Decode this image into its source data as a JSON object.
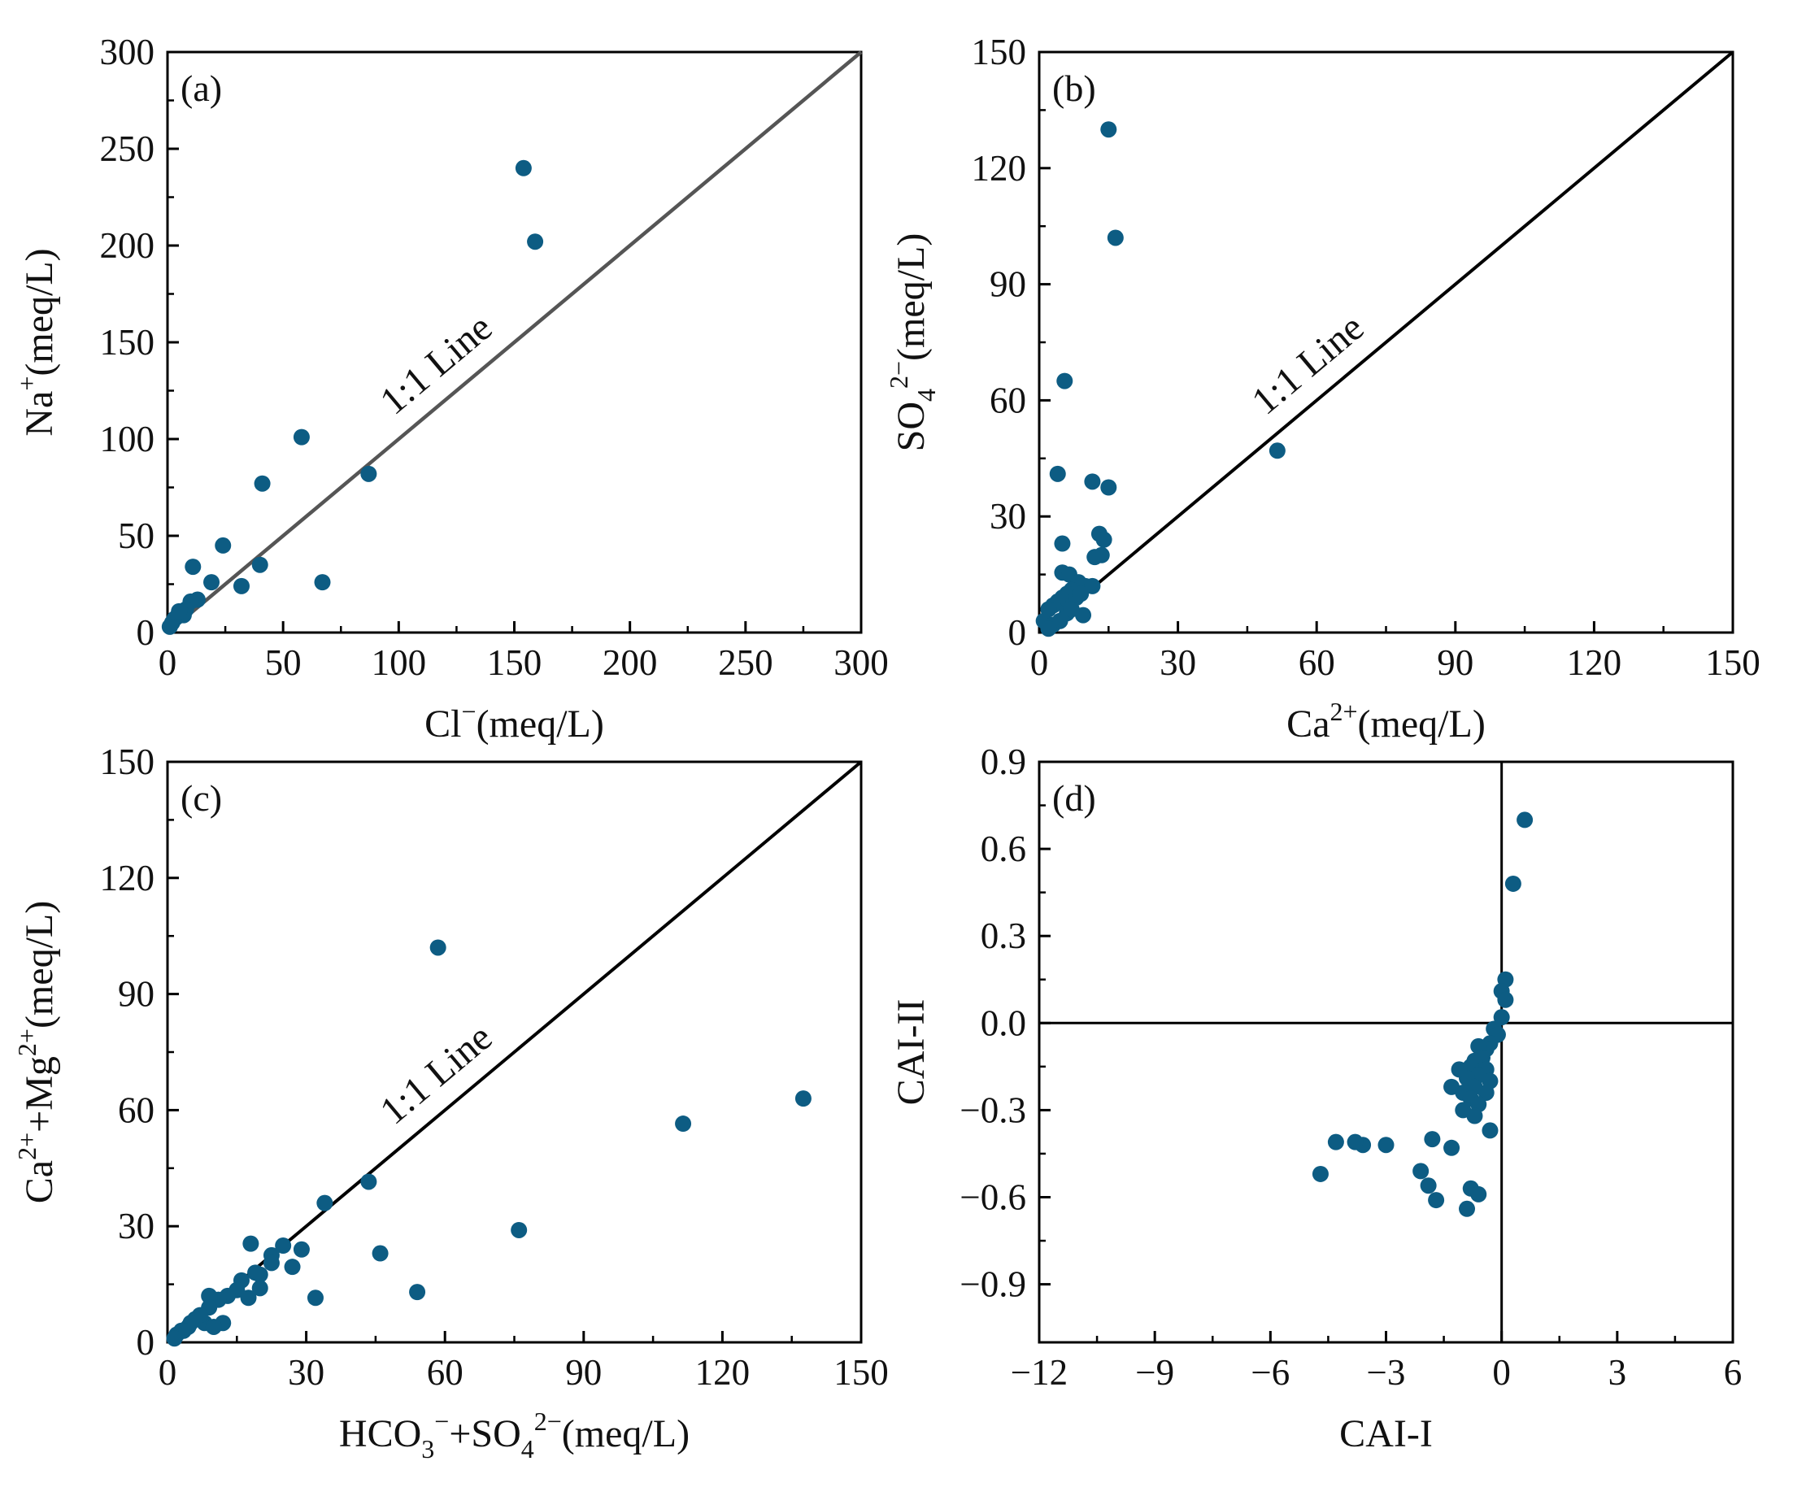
{
  "colors": {
    "point": "#0d5c83",
    "axis": "#000000",
    "ref_line_a": "#555555",
    "ref_line": "#000000"
  },
  "chart_data": [
    {
      "type": "scatter",
      "panel": "(a)",
      "xlabel": {
        "base": "Cl",
        "sup": "−",
        "unit": "(meq/L)"
      },
      "ylabel": {
        "base": "Na",
        "sup": "+",
        "unit": "(meq/L)"
      },
      "xlim": [
        0,
        300
      ],
      "ylim": [
        0,
        300
      ],
      "xticks": [
        "0",
        "50",
        "100",
        "150",
        "200",
        "250",
        "300"
      ],
      "yticks": [
        "0",
        "50",
        "100",
        "150",
        "200",
        "250",
        "300"
      ],
      "ref_line": {
        "label": "1:1 Line",
        "from": [
          0,
          0
        ],
        "to": [
          300,
          300
        ]
      },
      "points": [
        [
          154,
          240
        ],
        [
          159,
          202
        ],
        [
          58,
          101
        ],
        [
          87,
          82
        ],
        [
          41,
          77
        ],
        [
          40,
          35
        ],
        [
          67,
          26
        ],
        [
          32,
          24
        ],
        [
          24,
          45
        ],
        [
          19,
          26
        ],
        [
          11,
          34
        ],
        [
          13,
          17
        ],
        [
          10,
          16
        ],
        [
          8,
          12
        ],
        [
          6,
          10
        ],
        [
          5,
          9
        ],
        [
          4,
          8
        ],
        [
          3,
          7
        ],
        [
          2,
          5
        ],
        [
          1,
          3
        ],
        [
          7,
          9
        ],
        [
          5,
          11
        ]
      ]
    },
    {
      "type": "scatter",
      "panel": "(b)",
      "xlabel": {
        "base": "Ca",
        "sup": "2+",
        "unit": "(meq/L)"
      },
      "ylabel": {
        "base": "SO",
        "sub": "4",
        "sup": "2−",
        "unit": "(meq/L)"
      },
      "xlim": [
        0,
        150
      ],
      "ylim": [
        0,
        150
      ],
      "xticks": [
        "0",
        "30",
        "60",
        "90",
        "120",
        "150"
      ],
      "yticks": [
        "0",
        "30",
        "60",
        "90",
        "120",
        "150"
      ],
      "ref_line": {
        "label": "1:1 Line",
        "from": [
          0,
          0
        ],
        "to": [
          150,
          150
        ]
      },
      "points": [
        [
          15,
          130
        ],
        [
          16.5,
          102
        ],
        [
          5.5,
          65
        ],
        [
          4,
          41
        ],
        [
          11.5,
          39
        ],
        [
          15,
          37.5
        ],
        [
          51.5,
          47
        ],
        [
          5,
          23
        ],
        [
          13,
          25.5
        ],
        [
          14,
          24
        ],
        [
          13.5,
          20
        ],
        [
          12,
          19.5
        ],
        [
          5,
          15.5
        ],
        [
          6.5,
          15
        ],
        [
          8.5,
          13
        ],
        [
          10,
          12
        ],
        [
          11.5,
          12
        ],
        [
          7,
          11
        ],
        [
          6,
          10
        ],
        [
          5,
          9
        ],
        [
          4,
          8
        ],
        [
          3,
          7
        ],
        [
          2,
          6
        ],
        [
          1,
          3
        ],
        [
          8,
          9
        ],
        [
          9,
          10
        ],
        [
          9.5,
          4.5
        ],
        [
          4.5,
          3
        ],
        [
          6,
          5
        ],
        [
          3,
          2
        ],
        [
          2,
          1
        ],
        [
          7,
          6
        ]
      ]
    },
    {
      "type": "scatter",
      "panel": "(c)",
      "xlabel": {
        "parts": [
          {
            "base": "HCO",
            "sub": "3",
            "sup": "−"
          },
          {
            "base": "+SO",
            "sub": "4",
            "sup": "2−"
          }
        ],
        "unit": "(meq/L)"
      },
      "ylabel": {
        "parts": [
          {
            "base": "Ca",
            "sup": "2+"
          },
          {
            "base": "+Mg",
            "sup": "2+"
          }
        ],
        "unit": "(meq/L)"
      },
      "xlim": [
        0,
        150
      ],
      "ylim": [
        0,
        150
      ],
      "xticks": [
        "0",
        "30",
        "60",
        "90",
        "120",
        "150"
      ],
      "yticks": [
        "0",
        "30",
        "60",
        "90",
        "120",
        "150"
      ],
      "ref_line": {
        "label": "1:1 Line",
        "from": [
          0,
          0
        ],
        "to": [
          150,
          150
        ]
      },
      "points": [
        [
          58.5,
          102
        ],
        [
          137.5,
          63
        ],
        [
          111.5,
          56.5
        ],
        [
          76,
          29
        ],
        [
          54,
          13
        ],
        [
          46,
          23
        ],
        [
          43.5,
          41.5
        ],
        [
          34,
          36
        ],
        [
          32,
          11.5
        ],
        [
          29,
          24
        ],
        [
          27,
          19.5
        ],
        [
          25,
          25
        ],
        [
          22.5,
          22.5
        ],
        [
          22.5,
          20.5
        ],
        [
          20,
          17.5
        ],
        [
          20,
          14
        ],
        [
          18,
          25.5
        ],
        [
          17.5,
          11.5
        ],
        [
          16,
          16
        ],
        [
          15,
          13.5
        ],
        [
          13,
          12
        ],
        [
          12,
          5
        ],
        [
          11,
          11
        ],
        [
          9,
          12
        ],
        [
          9,
          9
        ],
        [
          8,
          5
        ],
        [
          7,
          7
        ],
        [
          6,
          6
        ],
        [
          5,
          5
        ],
        [
          4.5,
          4
        ],
        [
          3.5,
          3
        ],
        [
          3,
          3
        ],
        [
          2,
          2
        ],
        [
          1.5,
          1
        ],
        [
          10,
          4
        ],
        [
          19,
          18
        ]
      ]
    },
    {
      "type": "scatter",
      "panel": "(d)",
      "xlabel": {
        "base": "CAI-I"
      },
      "ylabel": {
        "base": "CAI-II"
      },
      "xlim": [
        -12,
        6
      ],
      "ylim": [
        -1.1,
        0.9
      ],
      "xticks": [
        "−12",
        "−9",
        "−6",
        "−3",
        "0",
        "3",
        "6"
      ],
      "xtick_values": [
        -12,
        -9,
        -6,
        -3,
        0,
        3,
        6
      ],
      "yticks": [
        "−0.9",
        "−0.6",
        "−0.3",
        "0.0",
        "0.3",
        "0.6",
        "0.9"
      ],
      "ytick_values": [
        -0.9,
        -0.6,
        -0.3,
        0.0,
        0.3,
        0.6,
        0.9
      ],
      "crosshair": [
        0,
        0
      ],
      "points": [
        [
          0.6,
          0.7
        ],
        [
          0.3,
          0.48
        ],
        [
          0.1,
          0.15
        ],
        [
          0.0,
          0.11
        ],
        [
          0.1,
          0.08
        ],
        [
          0.0,
          0.02
        ],
        [
          -0.2,
          -0.02
        ],
        [
          -0.1,
          -0.04
        ],
        [
          -0.3,
          -0.07
        ],
        [
          -0.4,
          -0.09
        ],
        [
          -0.6,
          -0.08
        ],
        [
          -0.5,
          -0.12
        ],
        [
          -0.7,
          -0.13
        ],
        [
          -0.8,
          -0.15
        ],
        [
          -0.4,
          -0.16
        ],
        [
          -0.6,
          -0.18
        ],
        [
          -0.9,
          -0.19
        ],
        [
          -0.3,
          -0.2
        ],
        [
          -0.7,
          -0.22
        ],
        [
          -1.1,
          -0.16
        ],
        [
          -1.3,
          -0.22
        ],
        [
          -1.0,
          -0.24
        ],
        [
          -0.4,
          -0.24
        ],
        [
          -0.8,
          -0.26
        ],
        [
          -0.6,
          -0.28
        ],
        [
          -1.0,
          -0.3
        ],
        [
          -0.7,
          -0.32
        ],
        [
          -0.3,
          -0.37
        ],
        [
          -1.3,
          -0.43
        ],
        [
          -1.8,
          -0.4
        ],
        [
          -3.0,
          -0.42
        ],
        [
          -3.6,
          -0.42
        ],
        [
          -3.8,
          -0.41
        ],
        [
          -4.3,
          -0.41
        ],
        [
          -4.7,
          -0.52
        ],
        [
          -2.1,
          -0.51
        ],
        [
          -1.9,
          -0.56
        ],
        [
          -1.7,
          -0.61
        ],
        [
          -0.8,
          -0.57
        ],
        [
          -0.6,
          -0.59
        ],
        [
          -0.9,
          -0.64
        ]
      ]
    }
  ]
}
